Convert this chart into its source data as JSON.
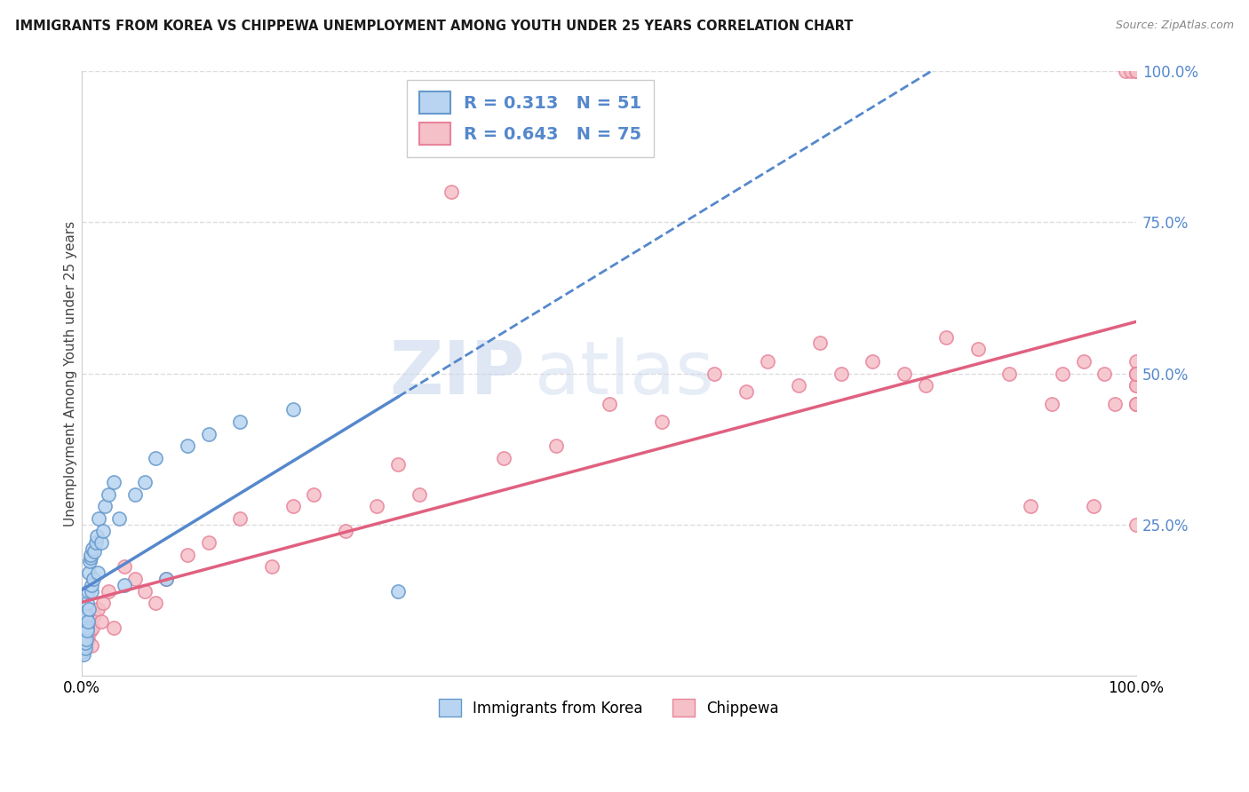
{
  "title": "IMMIGRANTS FROM KOREA VS CHIPPEWA UNEMPLOYMENT AMONG YOUTH UNDER 25 YEARS CORRELATION CHART",
  "source": "Source: ZipAtlas.com",
  "ylabel": "Unemployment Among Youth under 25 years",
  "R1": 0.313,
  "N1": 51,
  "R2": 0.643,
  "N2": 75,
  "color_korea_fill": "#B8D4F0",
  "color_korea_edge": "#6699CC",
  "color_chippewa_fill": "#F5C0C8",
  "color_chippewa_edge": "#E8849A",
  "color_trend_korea": "#5588CC",
  "color_trend_chippewa": "#E06080",
  "legend_1_label": "Immigrants from Korea",
  "legend_2_label": "Chippewa",
  "watermark_zip": "ZIP",
  "watermark_atlas": "atlas",
  "background_color": "#FFFFFF",
  "grid_color": "#DDDDDD",
  "title_color": "#1a1a1a",
  "source_color": "#888888",
  "right_tick_color": "#5588CC",
  "korea_x": [
    0.05,
    0.08,
    0.1,
    0.12,
    0.15,
    0.18,
    0.2,
    0.22,
    0.25,
    0.28,
    0.3,
    0.32,
    0.35,
    0.38,
    0.4,
    0.42,
    0.45,
    0.48,
    0.5,
    0.55,
    0.6,
    0.65,
    0.7,
    0.75,
    0.8,
    0.85,
    0.9,
    0.95,
    1.0,
    1.1,
    1.2,
    1.3,
    1.4,
    1.5,
    1.6,
    1.8,
    2.0,
    2.2,
    2.5,
    3.0,
    3.5,
    4.0,
    5.0,
    6.0,
    7.0,
    8.0,
    10.0,
    12.0,
    15.0,
    20.0,
    30.0
  ],
  "korea_y": [
    5.5,
    4.0,
    9.0,
    6.0,
    7.5,
    3.5,
    8.0,
    5.0,
    6.5,
    4.5,
    9.5,
    7.0,
    5.5,
    8.5,
    6.0,
    10.0,
    8.0,
    7.5,
    12.0,
    9.0,
    14.0,
    11.0,
    17.0,
    19.0,
    19.5,
    20.0,
    14.0,
    15.0,
    21.0,
    16.0,
    20.5,
    22.0,
    23.0,
    17.0,
    26.0,
    22.0,
    24.0,
    28.0,
    30.0,
    32.0,
    26.0,
    15.0,
    30.0,
    32.0,
    36.0,
    16.0,
    38.0,
    40.0,
    42.0,
    44.0,
    14.0
  ],
  "chippewa_x": [
    0.05,
    0.1,
    0.15,
    0.2,
    0.25,
    0.3,
    0.4,
    0.5,
    0.6,
    0.7,
    0.8,
    0.9,
    1.0,
    1.2,
    1.5,
    1.8,
    2.0,
    2.5,
    3.0,
    4.0,
    5.0,
    6.0,
    7.0,
    8.0,
    10.0,
    12.0,
    15.0,
    18.0,
    20.0,
    22.0,
    25.0,
    28.0,
    30.0,
    32.0,
    35.0,
    40.0,
    45.0,
    50.0,
    55.0,
    60.0,
    63.0,
    65.0,
    68.0,
    70.0,
    72.0,
    75.0,
    78.0,
    80.0,
    82.0,
    85.0,
    88.0,
    90.0,
    92.0,
    93.0,
    95.0,
    96.0,
    97.0,
    98.0,
    99.0,
    99.5,
    100.0,
    100.0,
    100.0,
    100.0,
    100.0,
    100.0,
    100.0,
    100.0,
    100.0,
    100.0,
    100.0,
    100.0,
    100.0,
    100.0,
    100.0
  ],
  "chippewa_y": [
    4.0,
    6.0,
    5.0,
    7.0,
    5.5,
    4.5,
    8.0,
    7.0,
    6.0,
    9.0,
    7.5,
    5.0,
    8.0,
    10.0,
    11.0,
    9.0,
    12.0,
    14.0,
    8.0,
    18.0,
    16.0,
    14.0,
    12.0,
    16.0,
    20.0,
    22.0,
    26.0,
    18.0,
    28.0,
    30.0,
    24.0,
    28.0,
    35.0,
    30.0,
    80.0,
    36.0,
    38.0,
    45.0,
    42.0,
    50.0,
    47.0,
    52.0,
    48.0,
    55.0,
    50.0,
    52.0,
    50.0,
    48.0,
    56.0,
    54.0,
    50.0,
    28.0,
    45.0,
    50.0,
    52.0,
    28.0,
    50.0,
    45.0,
    100.0,
    100.0,
    50.0,
    48.0,
    45.0,
    50.0,
    52.0,
    48.0,
    25.0,
    100.0,
    50.0,
    45.0,
    100.0,
    50.0,
    50.0,
    45.0,
    50.0
  ]
}
